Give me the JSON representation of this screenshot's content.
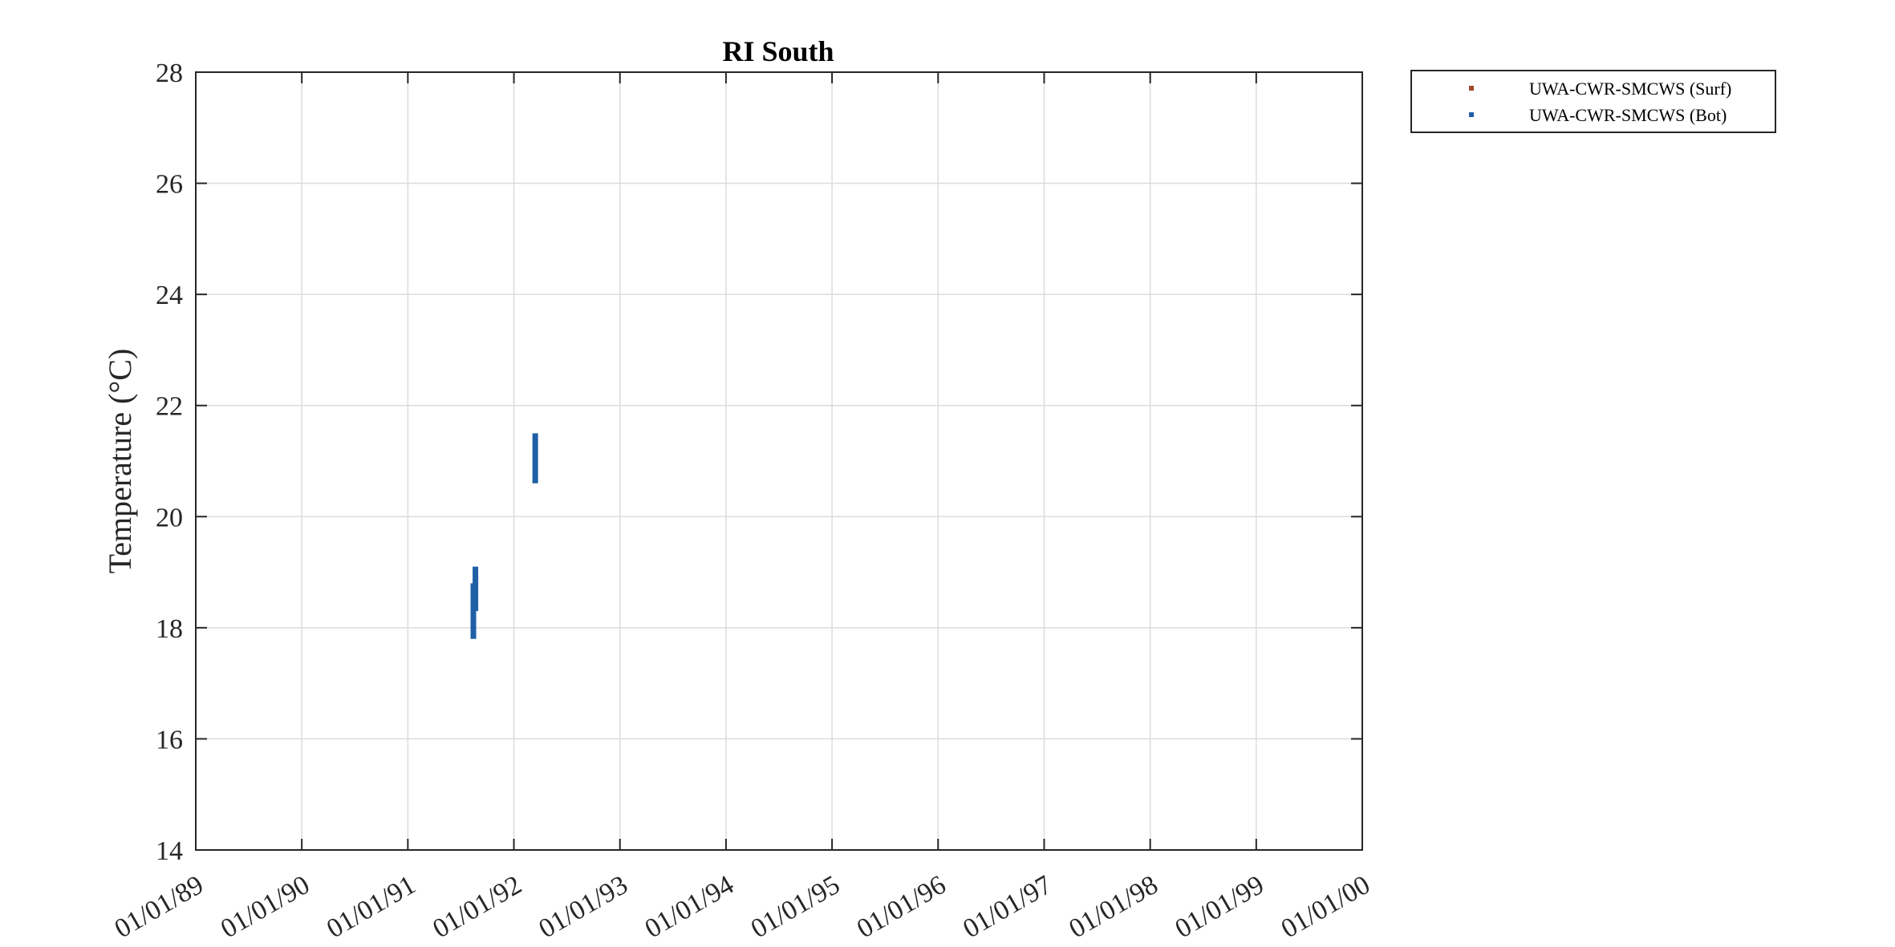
{
  "chart_data": {
    "type": "scatter",
    "title": "RI South",
    "xlabel": "",
    "ylabel": "Temperature (°C)",
    "x_tick_labels": [
      "01/01/89",
      "01/01/90",
      "01/01/91",
      "01/01/92",
      "01/01/93",
      "01/01/94",
      "01/01/95",
      "01/01/96",
      "01/01/97",
      "01/01/98",
      "01/01/99",
      "01/01/00"
    ],
    "y_ticks": [
      14,
      16,
      18,
      20,
      22,
      24,
      26,
      28
    ],
    "xlim": [
      "1989-01-01",
      "2000-01-01"
    ],
    "ylim": [
      14,
      28
    ],
    "grid": true,
    "legend_position": "outside-top-right",
    "series": [
      {
        "name": "UWA-CWR-SMCWS (Surf)",
        "color": "#A2472A",
        "points": []
      },
      {
        "name": "UWA-CWR-SMCWS (Bot)",
        "color": "#1F5FA6",
        "segments": [
          {
            "x": "1991-08-15",
            "y_min": 17.8,
            "y_max": 18.8
          },
          {
            "x": "1991-08-22",
            "y_min": 18.3,
            "y_max": 19.1
          },
          {
            "x": "1992-03-15",
            "y_min": 20.6,
            "y_max": 21.5
          }
        ]
      }
    ]
  }
}
